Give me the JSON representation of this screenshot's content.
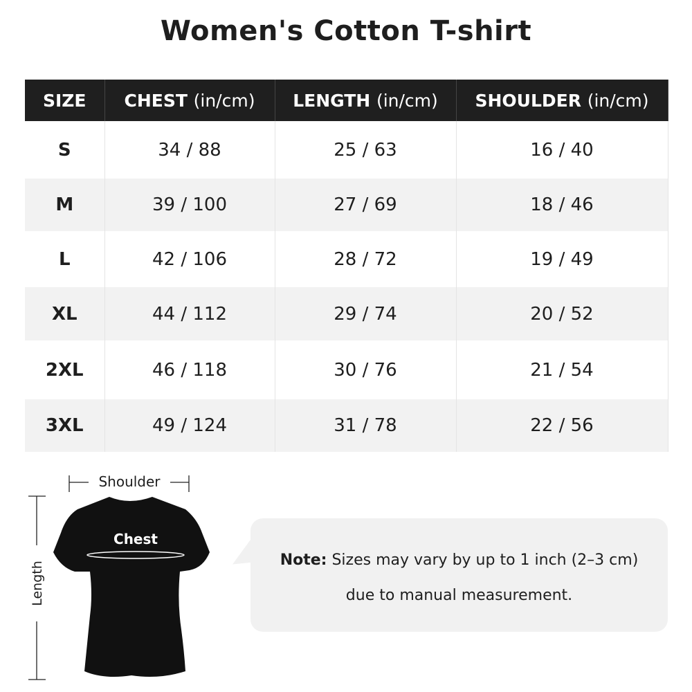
{
  "title": "Women's Cotton T-shirt",
  "table": {
    "headers": [
      {
        "label": "SIZE",
        "unit": ""
      },
      {
        "label": "CHEST",
        "unit": "(in/cm)"
      },
      {
        "label": "LENGTH",
        "unit": "(in/cm)"
      },
      {
        "label": "SHOULDER",
        "unit": "(in/cm)"
      }
    ],
    "rows": [
      [
        "S",
        "34 / 88",
        "25 / 63",
        "16 / 40"
      ],
      [
        "M",
        "39 / 100",
        "27 / 69",
        "18 / 46"
      ],
      [
        "L",
        "42 / 106",
        "28 / 72",
        "19 / 49"
      ],
      [
        "XL",
        "44 / 112",
        "29 / 74",
        "20 / 52"
      ],
      [
        "2XL",
        "46 / 118",
        "30 / 76",
        "21 / 54"
      ],
      [
        "3XL",
        "49 / 124",
        "31 / 78",
        "22 / 56"
      ]
    ]
  },
  "diagram": {
    "shoulder": "Shoulder",
    "chest": "Chest",
    "length": "Length"
  },
  "note": {
    "label": "Note:",
    "line1": "Sizes may vary by up to 1 inch (2–3 cm)",
    "line2": "due to manual measurement."
  }
}
